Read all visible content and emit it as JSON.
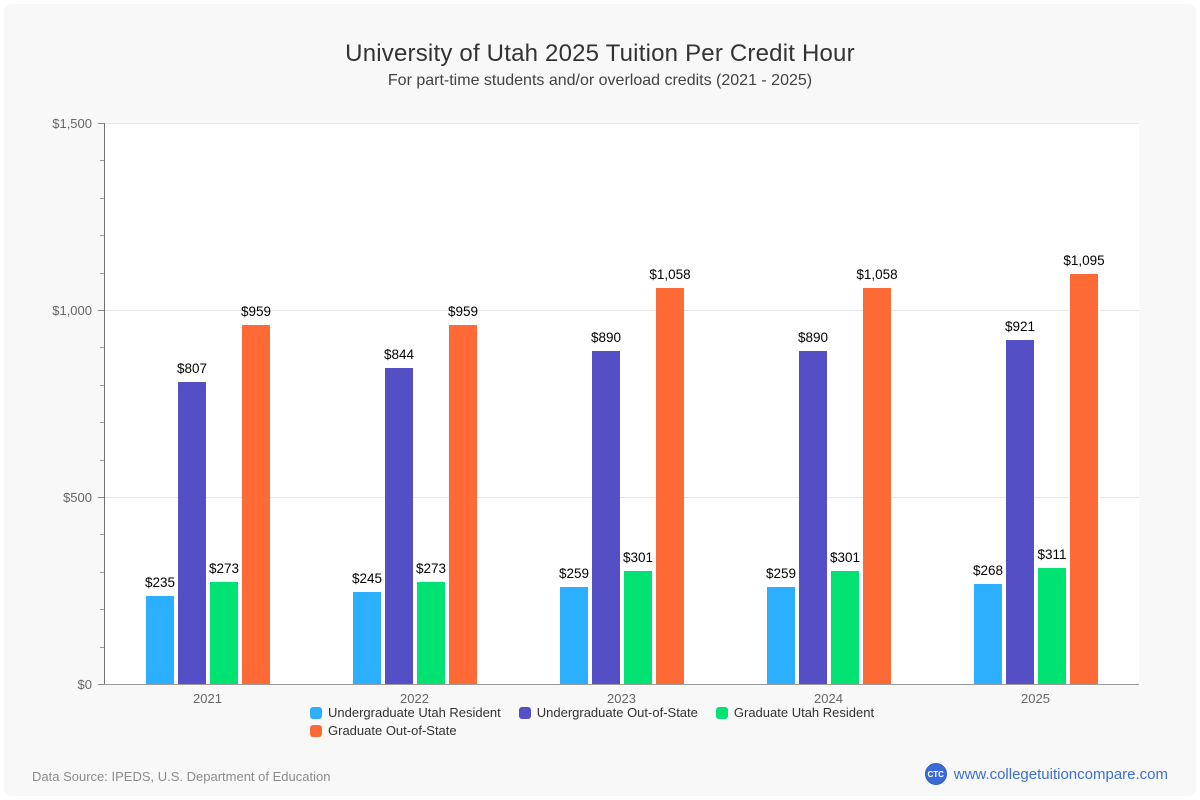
{
  "chart_data": {
    "type": "bar",
    "title": "University of Utah 2025 Tuition Per Credit Hour",
    "subtitle": "For part-time students and/or overload credits (2021 - 2025)",
    "categories": [
      "2021",
      "2022",
      "2023",
      "2024",
      "2025"
    ],
    "series": [
      {
        "name": "Undergraduate Utah Resident",
        "color": "#2CAFFE",
        "values": [
          235,
          245,
          259,
          259,
          268
        ],
        "labels": [
          "$235",
          "$245",
          "$259",
          "$259",
          "$268"
        ]
      },
      {
        "name": "Undergraduate Out-of-State",
        "color": "#544FC5",
        "values": [
          807,
          844,
          890,
          890,
          921
        ],
        "labels": [
          "$807",
          "$844",
          "$890",
          "$890",
          "$921"
        ]
      },
      {
        "name": "Graduate Utah Resident",
        "color": "#00E272",
        "values": [
          273,
          273,
          301,
          301,
          311
        ],
        "labels": [
          "$273",
          "$273",
          "$301",
          "$301",
          "$311"
        ]
      },
      {
        "name": "Graduate Out-of-State",
        "color": "#FE6A35",
        "values": [
          959,
          959,
          1058,
          1058,
          1095
        ],
        "labels": [
          "$959",
          "$959",
          "$1,058",
          "$1,058",
          "$1,095"
        ]
      }
    ],
    "xlabel": "",
    "ylabel": "",
    "ylim": [
      0,
      1500
    ],
    "major_tick_step": 500,
    "minor_tick_step": 100,
    "y_tick_labels": [
      "$0",
      "$500",
      "$1,000",
      "$1,500"
    ],
    "grid": true,
    "legend_position": "bottom"
  },
  "footer": {
    "source": "Data Source: IPEDS, U.S. Department of Education",
    "logo": "CTC",
    "link": "www.collegetuitioncompare.com"
  }
}
